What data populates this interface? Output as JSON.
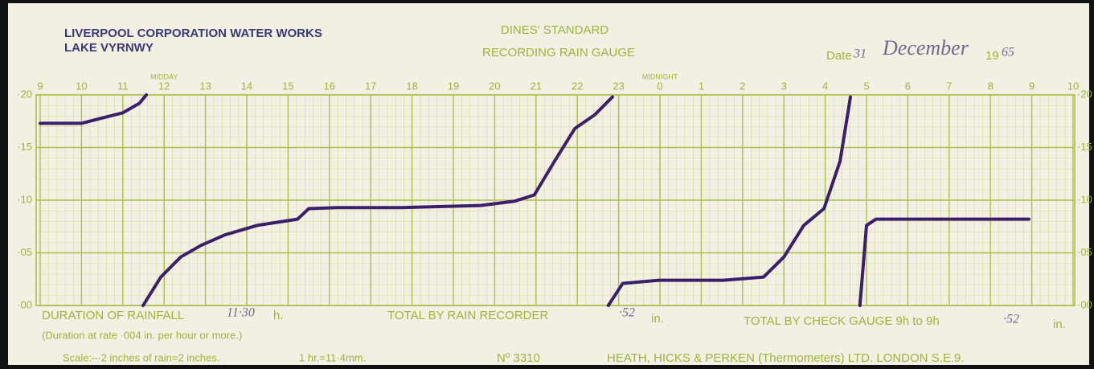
{
  "header": {
    "org": "LIVERPOOL CORPORATION WATER WORKS",
    "place": "LAKE VYRNWY",
    "standard": "DINES' STANDARD",
    "instrument": "RECORDING RAIN GAUGE",
    "date_label": "Date",
    "day": "31",
    "month": "December",
    "century": "19",
    "year": "65"
  },
  "chart_data": {
    "type": "line",
    "x": [
      0,
      1,
      1.4,
      2,
      2.4,
      2.57,
      null,
      2.49,
      2.92,
      3.4,
      3.89,
      4.47,
      5.25,
      6.23,
      6.5,
      7.2,
      8.75,
      10.66,
      11.48,
      11.96,
      12.45,
      12.94,
      13.42,
      13.85,
      null,
      13.75,
      14.1,
      14.98,
      16.54,
      17.51,
      18.0,
      18.48,
      18.97,
      19.36,
      19.61,
      null,
      19.84,
      20.0,
      20.23,
      21.98,
      23.93
    ],
    "series": [
      {
        "color": "#3b1f6a",
        "values": [
          0.173,
          0.173,
          0.177,
          0.183,
          0.192,
          0.2,
          null,
          0,
          0.027,
          0.046,
          0.057,
          0.067,
          0.076,
          0.082,
          0.092,
          0.093,
          0.093,
          0.095,
          0.099,
          0.105,
          0.137,
          0.168,
          0.181,
          0.198,
          null,
          0,
          0.021,
          0.024,
          0.024,
          0.027,
          0.046,
          0.076,
          0.092,
          0.137,
          0.198,
          null,
          0,
          0.076,
          0.082,
          0.082,
          0.082
        ]
      }
    ],
    "xlim": [
      0,
      25
    ],
    "xticks": [
      {
        "value": 0,
        "label": "9"
      },
      {
        "value": 1,
        "label": "10"
      },
      {
        "value": 2,
        "label": "11"
      },
      {
        "value": 3,
        "label": "12"
      },
      {
        "value": 4,
        "label": "13"
      },
      {
        "value": 5,
        "label": "14"
      },
      {
        "value": 6,
        "label": "15"
      },
      {
        "value": 7,
        "label": "16"
      },
      {
        "value": 8,
        "label": "17"
      },
      {
        "value": 9,
        "label": "18"
      },
      {
        "value": 10,
        "label": "19"
      },
      {
        "value": 11,
        "label": "20"
      },
      {
        "value": 12,
        "label": "21"
      },
      {
        "value": 13,
        "label": "22"
      },
      {
        "value": 14,
        "label": "23"
      },
      {
        "value": 15,
        "label": "0"
      },
      {
        "value": 16,
        "label": "1"
      },
      {
        "value": 17,
        "label": "2"
      },
      {
        "value": 18,
        "label": "3"
      },
      {
        "value": 19,
        "label": "4"
      },
      {
        "value": 20,
        "label": "5"
      },
      {
        "value": 21,
        "label": "6"
      },
      {
        "value": 22,
        "label": "7"
      },
      {
        "value": 23,
        "label": "8"
      },
      {
        "value": 24,
        "label": "9"
      },
      {
        "value": 25,
        "label": "10"
      }
    ],
    "ylim": [
      0,
      0.2
    ],
    "yticks": [
      {
        "value": 0,
        "label": "·00"
      },
      {
        "value": 0.05,
        "label": "·05"
      },
      {
        "value": 0.1,
        "label": "·10"
      },
      {
        "value": 0.15,
        "label": "·15"
      },
      {
        "value": 0.2,
        "label": "·20"
      }
    ],
    "grid": true,
    "grid_color": "#a9c14b",
    "annotations": [
      {
        "text": "MIDDAY",
        "x": 3
      },
      {
        "text": "MIDNIGHT",
        "x": 15
      }
    ]
  },
  "footer": {
    "duration_label": "DURATION OF RAINFALL",
    "duration": "11·30",
    "duration_unit": "h.",
    "recorder_label": "TOTAL BY RAIN RECORDER",
    "recorder_total": "·52",
    "recorder_unit": "in.",
    "check_label": "TOTAL BY CHECK GAUGE 9h to 9h",
    "check_total": "·52",
    "check_unit": "in.",
    "rate_note": "(Duration at rate ·004 in. per hour or more.)",
    "scale": "Scale:–·2 inches of rain=2 inches.",
    "hour_scale": "1 hr.=11·4mm.",
    "number": "Nº 3310",
    "maker": "HEATH, HICKS & PERKEN (Thermometers) LTD. LONDON S.E.9."
  }
}
